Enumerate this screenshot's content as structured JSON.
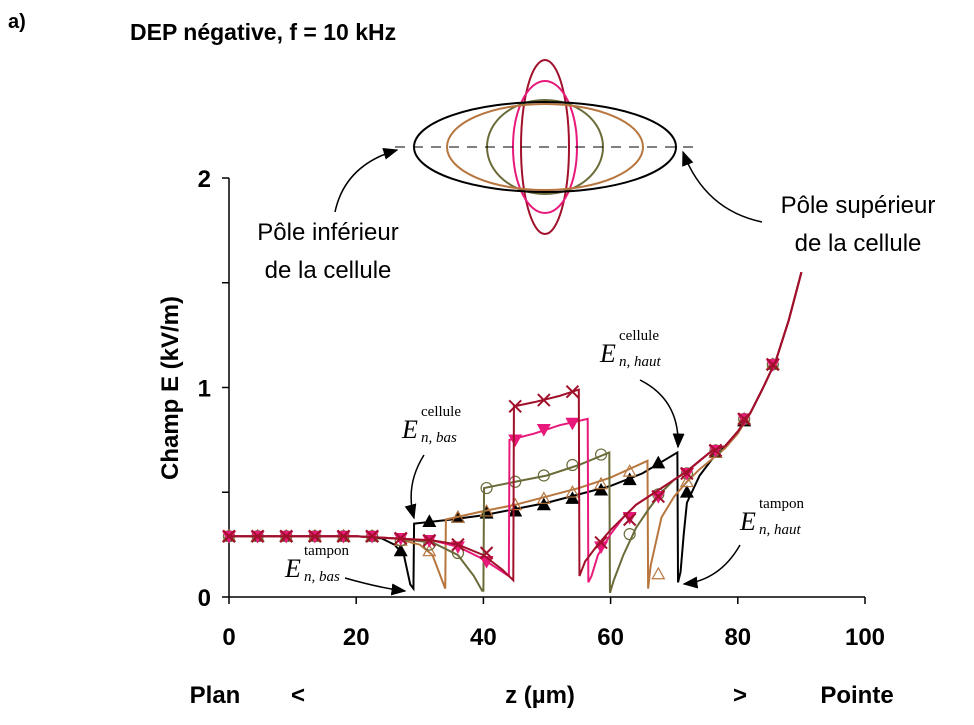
{
  "chart_data": {
    "type": "line",
    "panel_label": "a)",
    "title": "DEP négative, f = 10 kHz",
    "y_label": "Champ E (kV/m)",
    "x_label": "z (µm)",
    "x_left_label": "Plan",
    "x_left_symbol": "<",
    "x_right_symbol": ">",
    "x_right_label": "Pointe",
    "xlim": [
      0,
      100
    ],
    "xticks": [
      0,
      20,
      40,
      60,
      80,
      100
    ],
    "ylim": [
      0,
      2
    ],
    "yticks": [
      0,
      1,
      2
    ],
    "yminorticks": [
      0.5,
      1.5
    ],
    "annotations": [
      {
        "lines": [
          "Pôle inférieur",
          "de la cellule"
        ]
      },
      {
        "lines": [
          "Pôle supérieur",
          "de la cellule"
        ]
      }
    ],
    "math_labels": [
      {
        "base": "E",
        "sub": "n, bas",
        "sup": "cellule"
      },
      {
        "base": "E",
        "sub": "n, haut",
        "sup": "cellule"
      },
      {
        "base": "E",
        "sub": "n, bas",
        "sup": "tampon"
      },
      {
        "base": "E",
        "sub": "n, haut",
        "sup": "tampon"
      }
    ],
    "series": [
      {
        "color": "#000000",
        "marker": "triangle-filled",
        "x": [
          0,
          10,
          20,
          24,
          26,
          27.5,
          28.5,
          29,
          29.1,
          35,
          40,
          45,
          50,
          55,
          60,
          65,
          70.5,
          70.6,
          71,
          71.5,
          72,
          74,
          76,
          78,
          80,
          82,
          84,
          86,
          88,
          90
        ],
        "values": [
          0.29,
          0.29,
          0.29,
          0.28,
          0.25,
          0.2,
          0.06,
          0.04,
          0.35,
          0.37,
          0.39,
          0.42,
          0.45,
          0.49,
          0.53,
          0.59,
          0.69,
          0.07,
          0.12,
          0.3,
          0.45,
          0.58,
          0.66,
          0.72,
          0.79,
          0.88,
          1.0,
          1.13,
          1.32,
          1.55
        ],
        "marker_x": [
          0,
          4.5,
          9,
          13.5,
          18,
          22.5,
          27,
          31.5,
          36,
          40.5,
          45,
          49.5,
          54,
          58.5,
          63,
          67.5,
          72,
          76.5,
          81,
          85.5
        ],
        "marker_values": [
          0.29,
          0.29,
          0.29,
          0.29,
          0.29,
          0.29,
          0.22,
          0.36,
          0.38,
          0.4,
          0.41,
          0.44,
          0.47,
          0.51,
          0.56,
          0.64,
          0.5,
          0.69,
          0.84,
          1.11
        ]
      },
      {
        "color": "#b8763f",
        "marker": "triangle-open",
        "x": [
          0,
          10,
          20,
          26,
          30,
          32,
          33.5,
          34,
          34.1,
          40,
          45,
          50,
          55,
          60,
          65.8,
          65.9,
          66.3,
          68,
          70,
          72,
          74,
          76,
          78,
          80,
          82,
          84,
          86,
          88,
          90
        ],
        "values": [
          0.29,
          0.29,
          0.29,
          0.28,
          0.25,
          0.2,
          0.08,
          0.04,
          0.37,
          0.41,
          0.44,
          0.48,
          0.52,
          0.57,
          0.65,
          0.04,
          0.15,
          0.38,
          0.48,
          0.55,
          0.61,
          0.66,
          0.71,
          0.78,
          0.88,
          1.0,
          1.13,
          1.32,
          1.55
        ],
        "marker_x": [
          0,
          4.5,
          9,
          13.5,
          18,
          22.5,
          27,
          31.5,
          36,
          40.5,
          45,
          49.5,
          54,
          58.5,
          63,
          67.5,
          72,
          76.5,
          81,
          85.5
        ],
        "marker_values": [
          0.29,
          0.29,
          0.29,
          0.29,
          0.29,
          0.29,
          0.27,
          0.22,
          0.38,
          0.41,
          0.44,
          0.47,
          0.5,
          0.54,
          0.6,
          0.11,
          0.55,
          0.69,
          0.85,
          1.11
        ]
      },
      {
        "color": "#6b6b3a",
        "marker": "circle-open",
        "x": [
          0,
          10,
          20,
          26,
          32,
          36,
          38.5,
          39.8,
          40,
          40.1,
          45,
          50,
          55,
          59.8,
          59.9,
          60.5,
          62,
          64,
          66,
          68,
          70,
          72,
          74,
          76,
          78,
          80,
          82,
          84,
          86,
          88,
          90
        ],
        "values": [
          0.29,
          0.29,
          0.29,
          0.28,
          0.26,
          0.2,
          0.1,
          0.03,
          0.03,
          0.52,
          0.55,
          0.58,
          0.63,
          0.69,
          0.02,
          0.08,
          0.2,
          0.33,
          0.42,
          0.5,
          0.56,
          0.6,
          0.65,
          0.7,
          0.72,
          0.79,
          0.88,
          1.0,
          1.13,
          1.32,
          1.55
        ],
        "marker_x": [
          0,
          4.5,
          9,
          13.5,
          18,
          22.5,
          27,
          31.5,
          36,
          40.5,
          45,
          49.5,
          54,
          58.5,
          63,
          67.5,
          72,
          76.5,
          81,
          85.5
        ],
        "marker_values": [
          0.29,
          0.29,
          0.29,
          0.29,
          0.29,
          0.29,
          0.27,
          0.25,
          0.21,
          0.52,
          0.55,
          0.58,
          0.63,
          0.68,
          0.3,
          0.49,
          0.59,
          0.7,
          0.85,
          1.11
        ]
      },
      {
        "color": "#e8197a",
        "marker": "triangle-down-filled",
        "x": [
          0,
          10,
          20,
          26,
          32,
          36,
          40,
          42.5,
          44,
          44.1,
          48,
          52,
          56.4,
          56.5,
          57,
          58,
          60,
          62,
          64,
          66,
          68,
          70,
          72,
          74,
          76,
          78,
          80,
          82,
          84,
          86,
          88,
          90
        ],
        "values": [
          0.29,
          0.29,
          0.29,
          0.28,
          0.27,
          0.24,
          0.18,
          0.13,
          0.1,
          0.75,
          0.78,
          0.82,
          0.85,
          0.07,
          0.1,
          0.2,
          0.3,
          0.38,
          0.44,
          0.48,
          0.52,
          0.56,
          0.6,
          0.65,
          0.7,
          0.72,
          0.79,
          0.88,
          1.0,
          1.13,
          1.32,
          1.55
        ],
        "marker_x": [
          0,
          4.5,
          9,
          13.5,
          18,
          22.5,
          27,
          31.5,
          36,
          40.5,
          45,
          49.5,
          54,
          58.5,
          63,
          67.5,
          72,
          76.5,
          81,
          85.5
        ],
        "marker_values": [
          0.29,
          0.29,
          0.29,
          0.29,
          0.29,
          0.29,
          0.28,
          0.27,
          0.24,
          0.17,
          0.75,
          0.8,
          0.83,
          0.24,
          0.38,
          0.48,
          0.59,
          0.7,
          0.85,
          1.11
        ]
      },
      {
        "color": "#a0102a",
        "marker": "x",
        "x": [
          0,
          10,
          20,
          26,
          32,
          36,
          40,
          43,
          44.7,
          44.8,
          48,
          52,
          55,
          55.1,
          56,
          58,
          60,
          62,
          64,
          66,
          68,
          70,
          72,
          74,
          76,
          78,
          80,
          82,
          84,
          86,
          88,
          90
        ],
        "values": [
          0.29,
          0.29,
          0.29,
          0.28,
          0.27,
          0.25,
          0.2,
          0.13,
          0.08,
          0.91,
          0.93,
          0.96,
          0.99,
          0.1,
          0.17,
          0.25,
          0.32,
          0.38,
          0.44,
          0.48,
          0.52,
          0.56,
          0.6,
          0.65,
          0.7,
          0.72,
          0.79,
          0.88,
          1.0,
          1.13,
          1.32,
          1.55
        ],
        "marker_x": [
          0,
          4.5,
          9,
          13.5,
          18,
          22.5,
          27,
          31.5,
          36,
          40.5,
          45,
          49.5,
          54,
          58.5,
          63,
          67.5,
          72,
          76.5,
          81,
          85.5
        ],
        "marker_values": [
          0.29,
          0.29,
          0.29,
          0.29,
          0.29,
          0.29,
          0.28,
          0.27,
          0.25,
          0.21,
          0.91,
          0.94,
          0.98,
          0.26,
          0.37,
          0.48,
          0.59,
          0.7,
          0.85,
          1.11
        ]
      }
    ]
  }
}
